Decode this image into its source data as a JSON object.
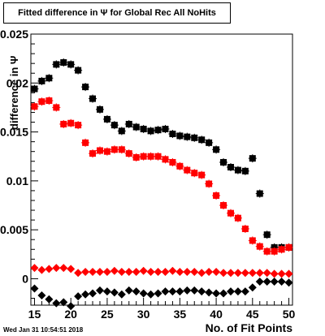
{
  "chart_data": {
    "type": "scatter",
    "title": "Fitted difference in Ψ  for Global Rec All NoHits",
    "xlabel": "No. of Fit Points",
    "ylabel": "difference in Ψ",
    "xlim": [
      14.5,
      50.5
    ],
    "ylim": [
      -0.0027,
      0.025
    ],
    "x_ticks": [
      "15",
      "20",
      "25",
      "30",
      "35",
      "40",
      "45",
      "50"
    ],
    "y_ticks": [
      "0",
      "0.005",
      "0.01",
      "0.015",
      "0.02",
      "0.025"
    ],
    "grid": false,
    "legend": "none",
    "series": [
      {
        "marker": "square",
        "color": "#000000",
        "x": [
          15,
          16,
          17,
          18,
          19,
          20,
          21,
          22,
          23,
          24,
          25,
          26,
          27,
          28,
          29,
          30,
          31,
          32,
          33,
          34,
          35,
          36,
          37,
          38,
          39,
          40,
          41,
          42,
          43,
          44,
          45,
          46,
          47,
          48,
          49,
          50
        ],
        "y": [
          0.0194,
          0.0202,
          0.0205,
          0.0219,
          0.0221,
          0.0219,
          0.0213,
          0.0196,
          0.0184,
          0.0173,
          0.0163,
          0.0157,
          0.0151,
          0.0158,
          0.0155,
          0.0153,
          0.0151,
          0.0152,
          0.0153,
          0.0148,
          0.0146,
          0.0145,
          0.0144,
          0.0142,
          0.0139,
          0.0132,
          0.0119,
          0.0114,
          0.0111,
          0.011,
          0.0123,
          0.0087,
          0.0045,
          0.0032,
          0.0032,
          0.0032
        ]
      },
      {
        "marker": "square",
        "color": "#ff0000",
        "x": [
          15,
          16,
          17,
          18,
          19,
          20,
          21,
          22,
          23,
          24,
          25,
          26,
          27,
          28,
          29,
          30,
          31,
          32,
          33,
          34,
          35,
          36,
          37,
          38,
          39,
          40,
          41,
          42,
          43,
          44,
          45,
          46,
          47,
          48,
          49,
          50
        ],
        "y": [
          0.0176,
          0.0181,
          0.0182,
          0.0175,
          0.0158,
          0.0159,
          0.0157,
          0.0139,
          0.0128,
          0.0131,
          0.013,
          0.0132,
          0.0132,
          0.0128,
          0.0124,
          0.0125,
          0.0125,
          0.0125,
          0.0122,
          0.0119,
          0.0115,
          0.0111,
          0.0108,
          0.0106,
          0.0097,
          0.0085,
          0.0075,
          0.0067,
          0.0062,
          0.0051,
          0.0039,
          0.0033,
          0.0028,
          0.0028,
          0.003,
          0.0032
        ]
      },
      {
        "marker": "diamond",
        "color": "#ff0000",
        "x": [
          15,
          16,
          17,
          18,
          19,
          20,
          21,
          22,
          23,
          24,
          25,
          26,
          27,
          28,
          29,
          30,
          31,
          32,
          33,
          34,
          35,
          36,
          37,
          38,
          39,
          40,
          41,
          42,
          43,
          44,
          45,
          46,
          47,
          48,
          49,
          50
        ],
        "y": [
          0.0011,
          0.0009,
          0.001,
          0.0011,
          0.0011,
          0.001,
          0.0006,
          0.0007,
          0.0007,
          0.0007,
          0.0007,
          0.0008,
          0.0007,
          0.0007,
          0.0007,
          0.0008,
          0.0007,
          0.0007,
          0.0007,
          0.0008,
          0.0007,
          0.0007,
          0.0007,
          0.0006,
          0.0007,
          0.0007,
          0.0006,
          0.0006,
          0.0006,
          0.0006,
          0.0006,
          0.0006,
          0.0006,
          0.0005,
          0.0005,
          0.0005
        ]
      },
      {
        "marker": "diamond",
        "color": "#000000",
        "x": [
          15,
          16,
          17,
          18,
          19,
          20,
          21,
          22,
          23,
          24,
          25,
          26,
          27,
          28,
          29,
          30,
          31,
          32,
          33,
          34,
          35,
          36,
          37,
          38,
          39,
          40,
          41,
          42,
          43,
          44,
          45,
          46,
          47,
          48,
          49,
          50
        ],
        "y": [
          -0.001,
          -0.0017,
          -0.0021,
          -0.0025,
          -0.0024,
          -0.0028,
          -0.0018,
          -0.0016,
          -0.0015,
          -0.0012,
          -0.0013,
          -0.0014,
          -0.0016,
          -0.0012,
          -0.0013,
          -0.0015,
          -0.0016,
          -0.0015,
          -0.0013,
          -0.0013,
          -0.0013,
          -0.0012,
          -0.0012,
          -0.0013,
          -0.0014,
          -0.0015,
          -0.0015,
          -0.0013,
          -0.0013,
          -0.0013,
          -0.0009,
          -0.0003,
          -0.0003,
          -0.0003,
          -0.0003,
          -0.0004
        ]
      }
    ],
    "timestamp": "Wed Jan 31 10:54:51 2018"
  }
}
